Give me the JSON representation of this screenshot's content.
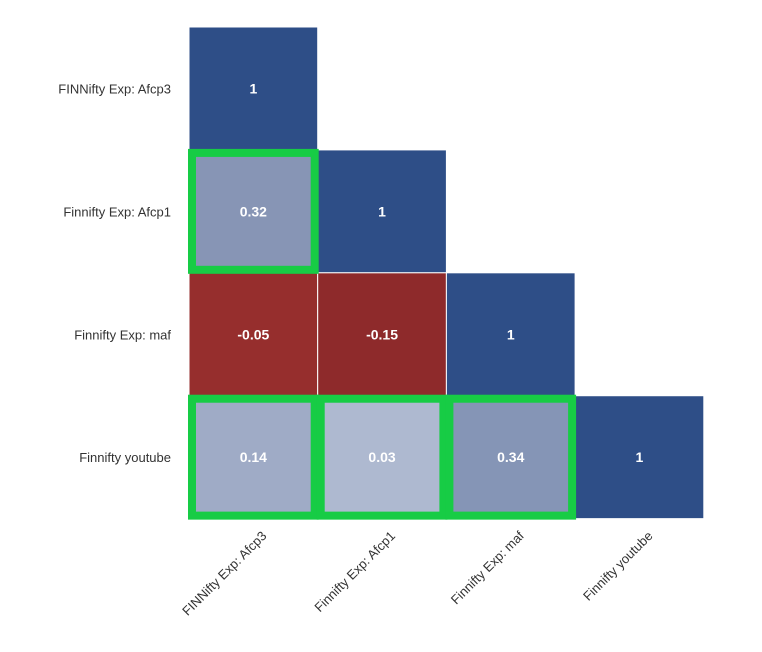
{
  "chart_data": {
    "type": "heatmap",
    "layout": "lower-triangular correlation matrix",
    "rows": [
      "FINNifty Exp: Afcp3",
      "Finnifty Exp: Afcp1",
      "Finnifty Exp: maf",
      "Finnifty youtube"
    ],
    "columns": [
      "FINNifty Exp: Afcp3",
      "Finnifty Exp: Afcp1",
      "Finnifty Exp: maf",
      "Finnifty youtube"
    ],
    "cells": [
      {
        "row": 0,
        "col": 0,
        "value": 1,
        "label": "1",
        "color": "#2e4e87",
        "highlighted": false
      },
      {
        "row": 1,
        "col": 0,
        "value": 0.32,
        "label": "0.32",
        "color": "#8795b5",
        "highlighted": true
      },
      {
        "row": 1,
        "col": 1,
        "value": 1,
        "label": "1",
        "color": "#2e4e87",
        "highlighted": false
      },
      {
        "row": 2,
        "col": 0,
        "value": -0.05,
        "label": "-0.05",
        "color": "#962e2d",
        "highlighted": false
      },
      {
        "row": 2,
        "col": 1,
        "value": -0.15,
        "label": "-0.15",
        "color": "#8e2a2b",
        "highlighted": false
      },
      {
        "row": 2,
        "col": 2,
        "value": 1,
        "label": "1",
        "color": "#2e4e87",
        "highlighted": false
      },
      {
        "row": 3,
        "col": 0,
        "value": 0.14,
        "label": "0.14",
        "color": "#9fabc6",
        "highlighted": true
      },
      {
        "row": 3,
        "col": 1,
        "value": 0.03,
        "label": "0.03",
        "color": "#aeb9d0",
        "highlighted": true
      },
      {
        "row": 3,
        "col": 2,
        "value": 0.34,
        "label": "0.34",
        "color": "#8595b6",
        "highlighted": true
      },
      {
        "row": 3,
        "col": 3,
        "value": 1,
        "label": "1",
        "color": "#2e4e87",
        "highlighted": false
      }
    ],
    "highlight_color": "#17cc45",
    "colors": {
      "positive_strong": "#2e4e87",
      "negative": "#962e2d"
    }
  }
}
